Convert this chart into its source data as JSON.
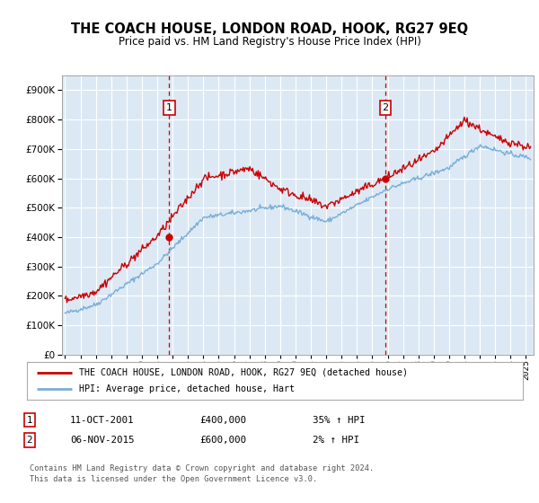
{
  "title": "THE COACH HOUSE, LONDON ROAD, HOOK, RG27 9EQ",
  "subtitle": "Price paid vs. HM Land Registry's House Price Index (HPI)",
  "ylim": [
    0,
    950000
  ],
  "xlim_start": 1994.8,
  "xlim_end": 2025.5,
  "plot_bg_color": "#dce9f5",
  "grid_color": "#ffffff",
  "red_line_color": "#cc0000",
  "blue_line_color": "#7aaed6",
  "marker1_x": 2001.78,
  "marker1_y": 400000,
  "marker1_label": "1",
  "marker1_date": "11-OCT-2001",
  "marker1_price": "£400,000",
  "marker1_hpi": "35% ↑ HPI",
  "marker2_x": 2015.85,
  "marker2_y": 600000,
  "marker2_label": "2",
  "marker2_date": "06-NOV-2015",
  "marker2_price": "£600,000",
  "marker2_hpi": "2% ↑ HPI",
  "legend_line1": "THE COACH HOUSE, LONDON ROAD, HOOK, RG27 9EQ (detached house)",
  "legend_line2": "HPI: Average price, detached house, Hart",
  "footnote1": "Contains HM Land Registry data © Crown copyright and database right 2024.",
  "footnote2": "This data is licensed under the Open Government Licence v3.0."
}
